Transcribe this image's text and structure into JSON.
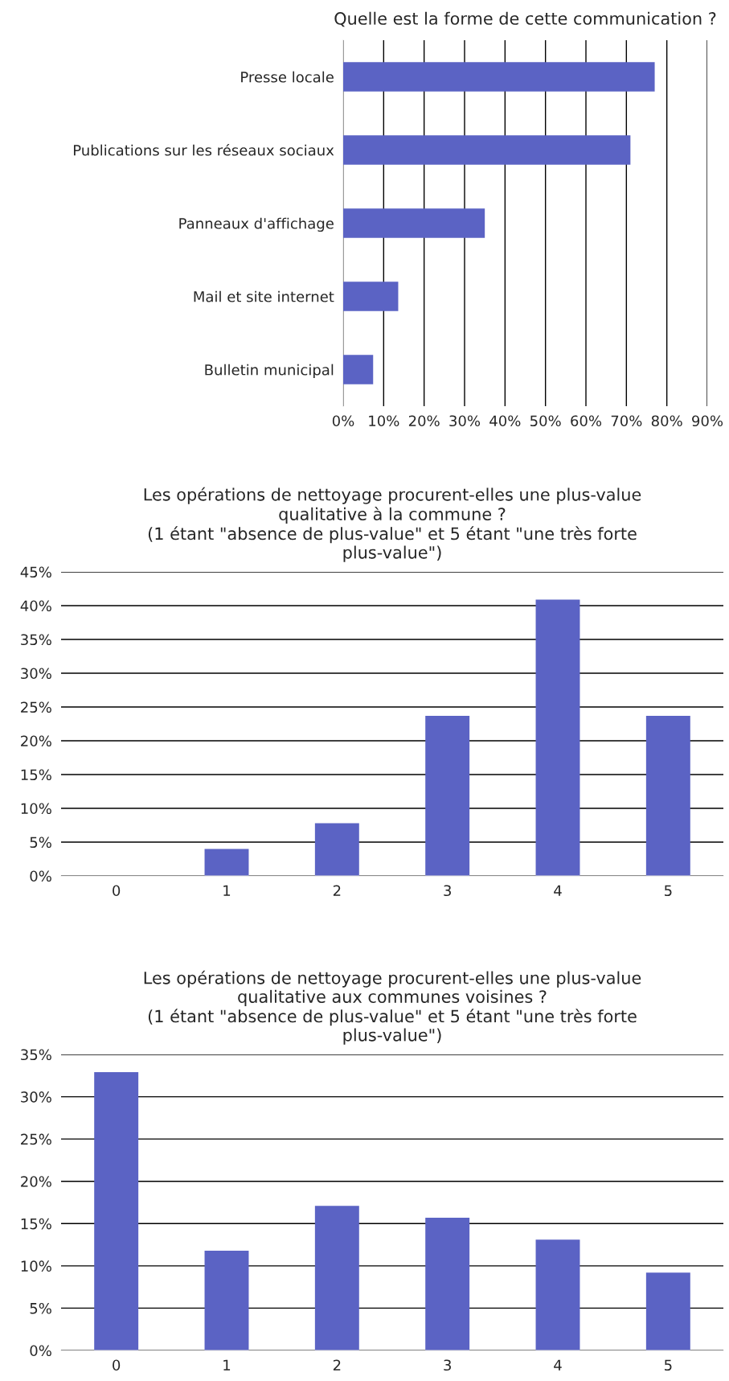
{
  "chart_data": [
    {
      "type": "bar",
      "orientation": "horizontal",
      "title": "Quelle est la forme de cette communication ?",
      "categories": [
        "Presse locale",
        "Publications sur les réseaux sociaux",
        "Panneaux d'affichage",
        "Mail et site internet",
        "Bulletin municipal"
      ],
      "values": [
        77,
        71,
        35,
        13.6,
        7.4
      ],
      "color": "#5b63c4",
      "xlim": [
        0,
        90
      ],
      "xticks": [
        {
          "value": 0,
          "label": "0%"
        },
        {
          "value": 10,
          "label": "10%"
        },
        {
          "value": 20,
          "label": "20%"
        },
        {
          "value": 30,
          "label": "30%"
        },
        {
          "value": 40,
          "label": "40%"
        },
        {
          "value": 50,
          "label": "50%"
        },
        {
          "value": 60,
          "label": "60%"
        },
        {
          "value": 70,
          "label": "70%"
        },
        {
          "value": 80,
          "label": "80%"
        },
        {
          "value": 90,
          "label": "90%"
        }
      ],
      "grid": "x"
    },
    {
      "type": "bar",
      "title": "Les opérations de nettoyage procurent-elles une plus-value\nqualitative à la commune ?\n(1 étant \"absence de plus-value\" et 5 étant \"une très forte\nplus-value\")",
      "categories": [
        "0",
        "1",
        "2",
        "3",
        "4",
        "5"
      ],
      "values": [
        0,
        4.0,
        7.8,
        23.7,
        40.9,
        23.7
      ],
      "color": "#5b63c4",
      "ylim": [
        0,
        45
      ],
      "yticks": [
        {
          "value": 0,
          "label": "0%"
        },
        {
          "value": 5,
          "label": "5%"
        },
        {
          "value": 10,
          "label": "10%"
        },
        {
          "value": 15,
          "label": "15%"
        },
        {
          "value": 20,
          "label": "20%"
        },
        {
          "value": 25,
          "label": "25%"
        },
        {
          "value": 30,
          "label": "30%"
        },
        {
          "value": 35,
          "label": "35%"
        },
        {
          "value": 40,
          "label": "40%"
        },
        {
          "value": 45,
          "label": "45%"
        }
      ],
      "grid": "y"
    },
    {
      "type": "bar",
      "title": "Les opérations de nettoyage procurent-elles une plus-value\nqualitative aux communes voisines ?\n(1 étant \"absence de plus-value\" et 5 étant \"une très forte\nplus-value\")",
      "categories": [
        "0",
        "1",
        "2",
        "3",
        "4",
        "5"
      ],
      "values": [
        32.9,
        11.8,
        17.1,
        15.7,
        13.1,
        9.2
      ],
      "color": "#5b63c4",
      "ylim": [
        0,
        35
      ],
      "yticks": [
        {
          "value": 0,
          "label": "0%"
        },
        {
          "value": 5,
          "label": "5%"
        },
        {
          "value": 10,
          "label": "10%"
        },
        {
          "value": 15,
          "label": "15%"
        },
        {
          "value": 20,
          "label": "20%"
        },
        {
          "value": 25,
          "label": "25%"
        },
        {
          "value": 30,
          "label": "30%"
        },
        {
          "value": 35,
          "label": "35%"
        }
      ],
      "grid": "y"
    }
  ]
}
